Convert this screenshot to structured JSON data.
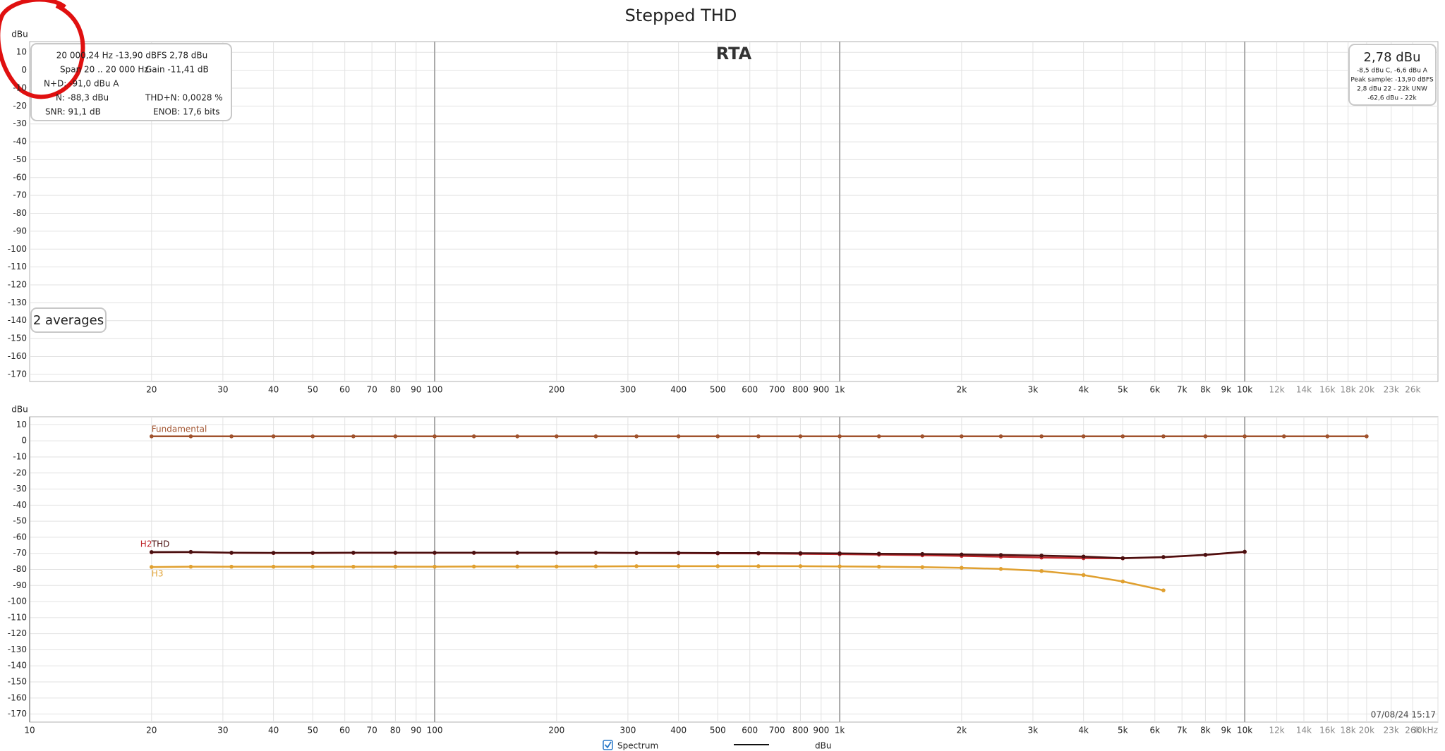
{
  "window_title": "Stepped THD",
  "rta_label": "RTA",
  "info_box": {
    "rows": [
      [
        "20 000,24 Hz  -13,90 dBFS  2,78 dBu"
      ],
      [
        "Span 20 .. 20 000 Hz",
        "Gain -11,41 dB"
      ],
      [
        "N+D: -91,0 dBu A"
      ],
      [
        "N: -88,3 dBu",
        "THD+N: 0,0028 %"
      ],
      [
        "SNR: 91,1 dB",
        "ENOB: 17,6 bits"
      ]
    ]
  },
  "level_box": {
    "value": "2,78 dBu",
    "lines": [
      "-8,5 dBu C, -6,6 dBu A",
      "Peak sample: -13,90 dBFS",
      "2,8 dBu 22 - 22k UNW",
      "-62,6 dBu - 22k"
    ]
  },
  "averages": "2 averages",
  "timestamp": "07/08/24 15:17",
  "legend": {
    "checkbox": "Spectrum",
    "unit": "dBu"
  },
  "chart_data": [
    {
      "type": "line",
      "ylabel": "dBu",
      "xscale": "log",
      "grid": true,
      "xlim": [
        10,
        30000
      ],
      "ylim": [
        -174,
        16
      ],
      "xticks": [
        20,
        30,
        40,
        50,
        60,
        70,
        80,
        90,
        100,
        200,
        300,
        400,
        500,
        600,
        700,
        800,
        900,
        {
          "value": 1000,
          "label": "1k"
        },
        {
          "value": 2000,
          "label": "2k"
        },
        {
          "value": 3000,
          "label": "3k"
        },
        {
          "value": 4000,
          "label": "4k"
        },
        {
          "value": 5000,
          "label": "5k"
        },
        {
          "value": 6000,
          "label": "6k"
        },
        {
          "value": 7000,
          "label": "7k"
        },
        {
          "value": 8000,
          "label": "8k"
        },
        {
          "value": 9000,
          "label": "9k"
        },
        {
          "value": 10000,
          "label": "10k"
        },
        {
          "value": 12000,
          "label": "12k"
        },
        {
          "value": 14000,
          "label": "14k"
        },
        {
          "value": 16000,
          "label": "16k"
        },
        {
          "value": 18000,
          "label": "18k"
        },
        {
          "value": 20000,
          "label": "20k"
        },
        {
          "value": 23000,
          "label": "23k"
        },
        {
          "value": 26000,
          "label": "26k"
        }
      ],
      "yticks": [
        10,
        0,
        -10,
        -20,
        -30,
        -40,
        -50,
        -60,
        -70,
        -80,
        -90,
        -100,
        -110,
        -120,
        -130,
        -140,
        -150,
        -160,
        -170
      ],
      "series": []
    },
    {
      "type": "line",
      "ylabel": "dBu",
      "xscale": "log",
      "grid": true,
      "xlim": [
        10,
        30000
      ],
      "ylim": [
        -175,
        15
      ],
      "xticks": [
        10,
        20,
        30,
        40,
        50,
        60,
        70,
        80,
        90,
        100,
        200,
        300,
        400,
        500,
        600,
        700,
        800,
        900,
        {
          "value": 1000,
          "label": "1k"
        },
        {
          "value": 2000,
          "label": "2k"
        },
        {
          "value": 3000,
          "label": "3k"
        },
        {
          "value": 4000,
          "label": "4k"
        },
        {
          "value": 5000,
          "label": "5k"
        },
        {
          "value": 6000,
          "label": "6k"
        },
        {
          "value": 7000,
          "label": "7k"
        },
        {
          "value": 8000,
          "label": "8k"
        },
        {
          "value": 9000,
          "label": "9k"
        },
        {
          "value": 10000,
          "label": "10k"
        },
        {
          "value": 12000,
          "label": "12k"
        },
        {
          "value": 14000,
          "label": "14k"
        },
        {
          "value": 16000,
          "label": "16k"
        },
        {
          "value": 18000,
          "label": "18k"
        },
        {
          "value": 20000,
          "label": "20k"
        },
        {
          "value": 23000,
          "label": "23k"
        },
        {
          "value": 26000,
          "label": "26k"
        },
        {
          "value": 30000,
          "label": "30kHz"
        }
      ],
      "yticks": [
        10,
        0,
        -10,
        -20,
        -30,
        -40,
        -50,
        -60,
        -70,
        -80,
        -90,
        -100,
        -110,
        -120,
        -130,
        -140,
        -150,
        -160,
        -170
      ],
      "x": [
        20,
        25,
        31.5,
        40,
        50,
        63,
        80,
        100,
        125,
        160,
        200,
        250,
        315,
        400,
        500,
        630,
        800,
        1000,
        1250,
        1600,
        2000,
        2500,
        3150,
        4000,
        5000,
        6300,
        8000,
        10000,
        12500,
        16000,
        20000
      ],
      "series": [
        {
          "name": "Fundamental",
          "color": "#a0522d",
          "values": [
            2.8,
            2.8,
            2.8,
            2.8,
            2.8,
            2.8,
            2.8,
            2.8,
            2.8,
            2.8,
            2.8,
            2.8,
            2.8,
            2.8,
            2.8,
            2.8,
            2.8,
            2.8,
            2.8,
            2.8,
            2.8,
            2.8,
            2.8,
            2.8,
            2.8,
            2.8,
            2.8,
            2.8,
            2.8,
            2.8,
            2.8
          ]
        },
        {
          "name": "H2",
          "color": "#c0282d",
          "values": [
            -69.3,
            -69.2,
            -69.7,
            -69.8,
            -69.8,
            -69.7,
            -69.7,
            -69.7,
            -69.7,
            -69.7,
            -69.7,
            -69.7,
            -69.8,
            -69.9,
            -70.0,
            -70.1,
            -70.3,
            -70.5,
            -70.8,
            -71.2,
            -71.6,
            -72.1,
            -72.6,
            -73.0,
            -73.1,
            -72.4,
            -71.0,
            -69.1,
            null,
            null,
            null
          ]
        },
        {
          "name": "THD",
          "color": "#4a1010",
          "values": [
            -69.2,
            -69.1,
            -69.6,
            -69.7,
            -69.7,
            -69.6,
            -69.6,
            -69.6,
            -69.6,
            -69.6,
            -69.6,
            -69.6,
            -69.7,
            -69.7,
            -69.8,
            -69.8,
            -69.9,
            -70.0,
            -70.2,
            -70.4,
            -70.7,
            -71.0,
            -71.4,
            -72.0,
            -73.0,
            -72.3,
            -70.9,
            -69.0,
            null,
            null,
            null
          ]
        },
        {
          "name": "H3",
          "color": "#e0a030",
          "values": [
            -78.5,
            -78.3,
            -78.3,
            -78.3,
            -78.3,
            -78.3,
            -78.3,
            -78.3,
            -78.2,
            -78.2,
            -78.2,
            -78.1,
            -78.0,
            -78.0,
            -78.0,
            -78.0,
            -78.0,
            -78.1,
            -78.3,
            -78.6,
            -79.0,
            -79.7,
            -81.0,
            -83.5,
            -87.5,
            -93.0,
            null,
            null,
            null,
            null,
            null
          ]
        }
      ]
    }
  ]
}
